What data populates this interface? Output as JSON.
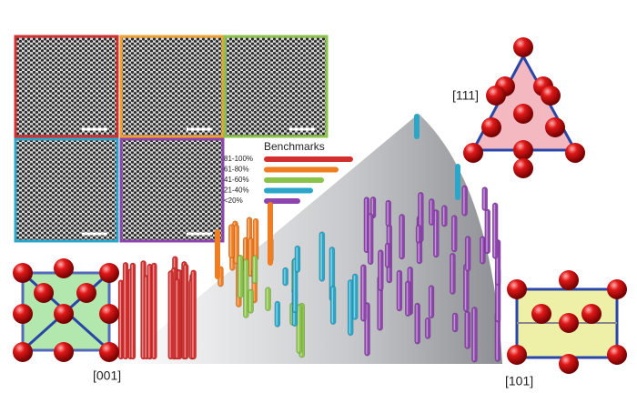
{
  "legend": {
    "title": "Benchmarks",
    "items": [
      "81-100%",
      "61-80%",
      "41-60%",
      "21-40%",
      "<20%"
    ]
  },
  "labels": {
    "top": "[111]",
    "left": "[001]",
    "right": "[101]"
  }
}
